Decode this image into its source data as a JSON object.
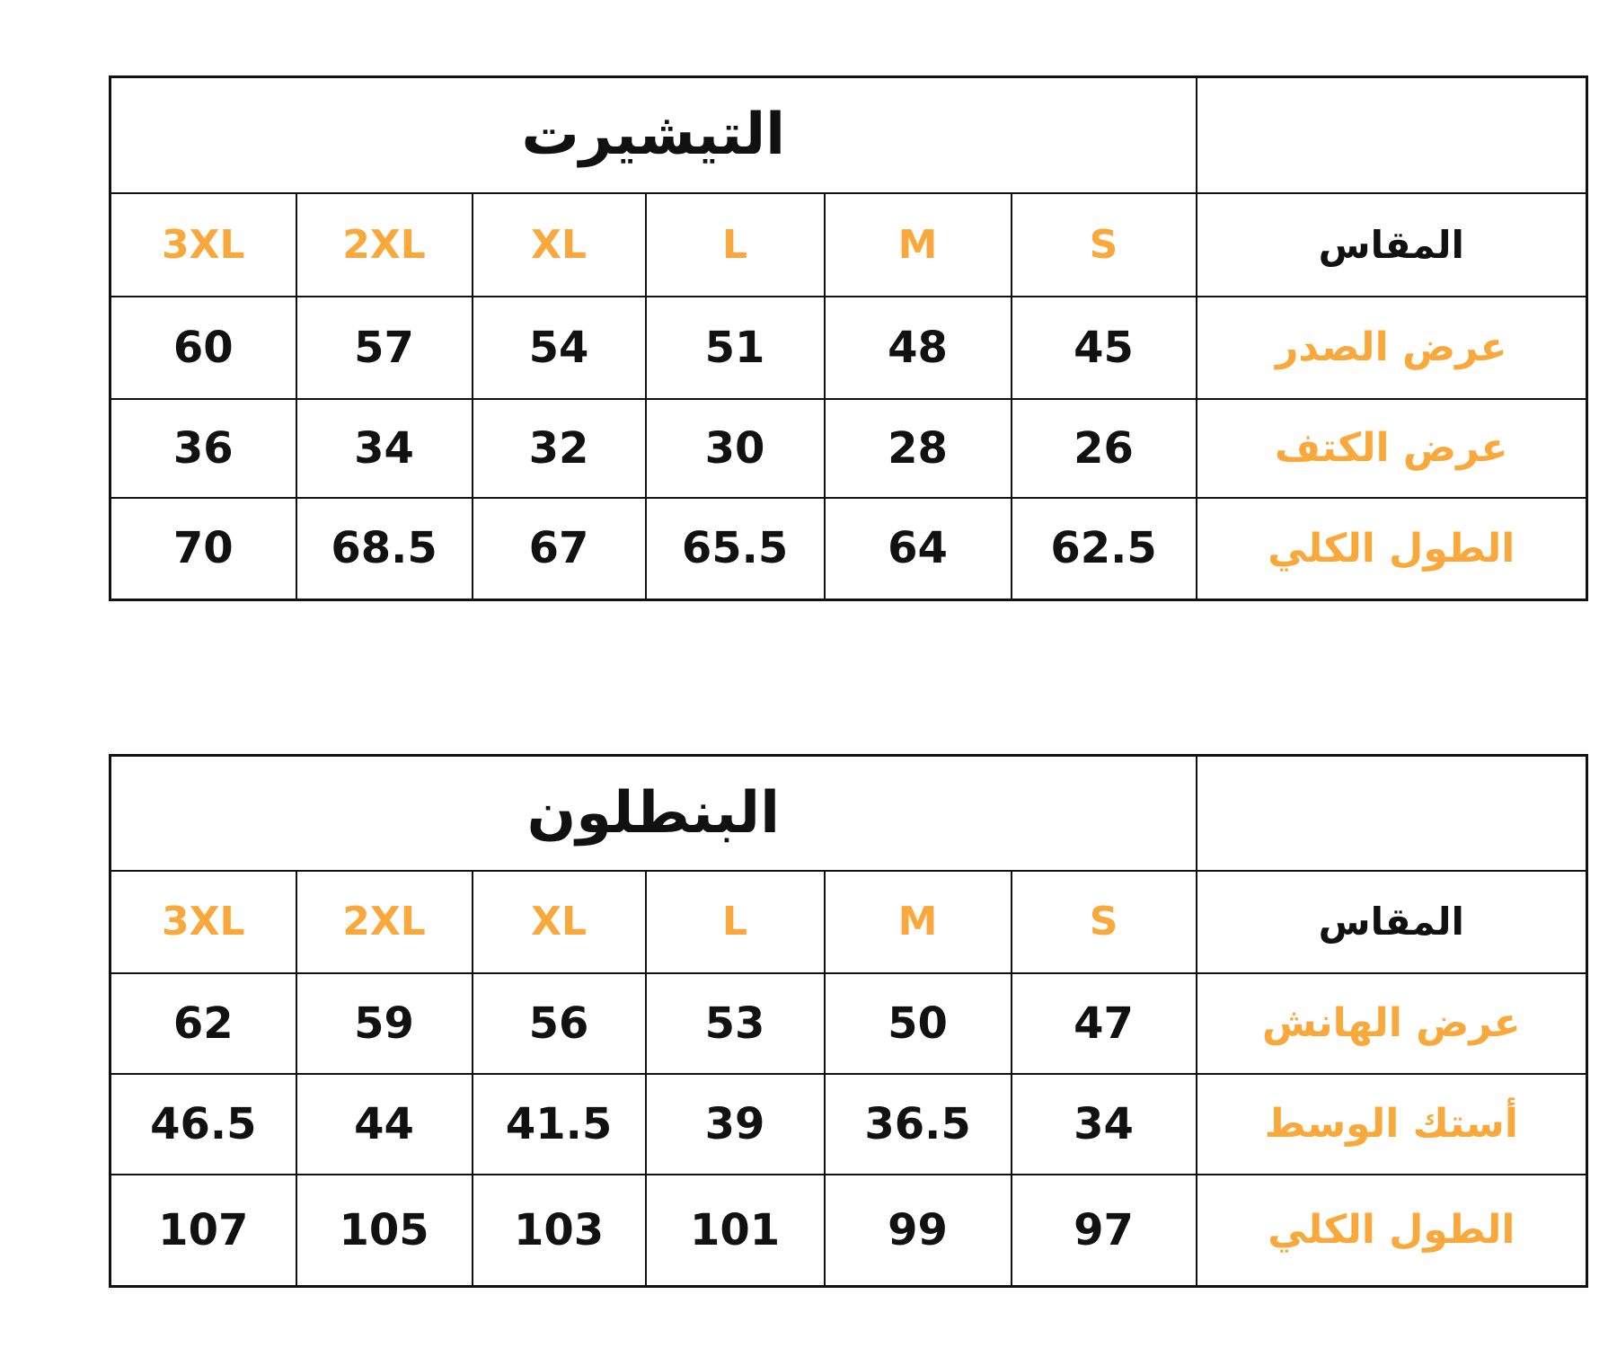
{
  "accent_color": "#F9A83C",
  "tables": [
    {
      "title": "التيشيرت",
      "size_header": "المقاس",
      "sizes": [
        "S",
        "M",
        "L",
        "XL",
        "2XL",
        "3XL"
      ],
      "rows": [
        {
          "label": "عرض الصدر",
          "values": [
            "45",
            "48",
            "51",
            "54",
            "57",
            "60"
          ]
        },
        {
          "label": "عرض الكتف",
          "values": [
            "26",
            "28",
            "30",
            "32",
            "34",
            "36"
          ]
        },
        {
          "label": "الطول الكلي",
          "values": [
            "62.5",
            "64",
            "65.5",
            "67",
            "68.5",
            "70"
          ]
        }
      ]
    },
    {
      "title": "البنطلون",
      "size_header": "المقاس",
      "sizes": [
        "S",
        "M",
        "L",
        "XL",
        "2XL",
        "3XL"
      ],
      "rows": [
        {
          "label": "عرض الهانش",
          "values": [
            "47",
            "50",
            "53",
            "56",
            "59",
            "62"
          ]
        },
        {
          "label": "أستك الوسط",
          "values": [
            "34",
            "36.5",
            "39",
            "41.5",
            "44",
            "46.5"
          ]
        },
        {
          "label": "الطول الكلي",
          "values": [
            "97",
            "99",
            "101",
            "103",
            "105",
            "107"
          ]
        }
      ]
    }
  ]
}
